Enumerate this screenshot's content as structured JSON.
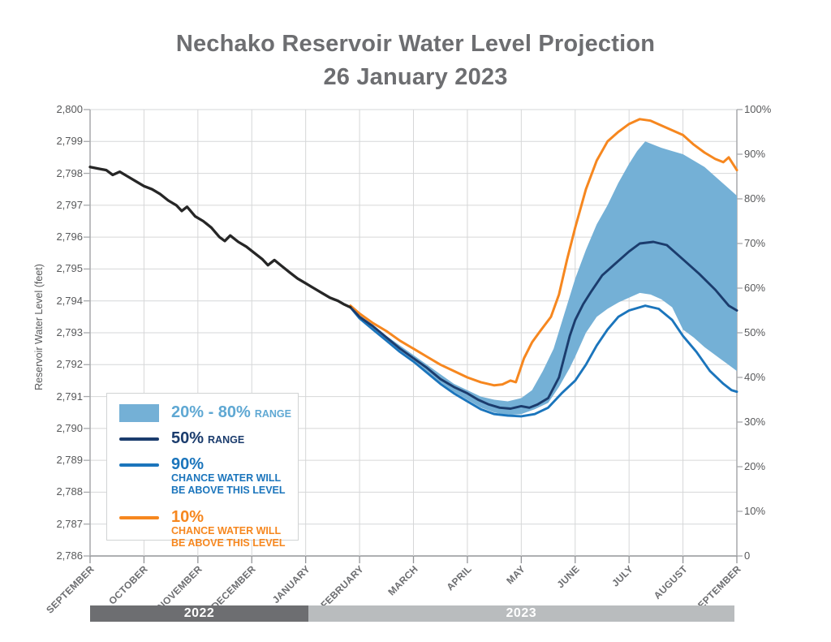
{
  "title": {
    "line1": "Nechako Reservoir Water Level Projection",
    "line2": "26 January 2023"
  },
  "colors": {
    "historical": "#262626",
    "median": "#1b3c6d",
    "p90": "#1b75bc",
    "p10": "#f6871f",
    "band": "#74b0d6",
    "band_text": "#5fa8d3",
    "grid": "#d6d7d8",
    "axis": "#a7a9ac",
    "axis_dark": "#939598",
    "bar_2022": "#6d6e71",
    "bar_2023": "#b9bcbe",
    "title_gray": "#6d6e71",
    "tick_gray": "#58595b"
  },
  "y_axis": {
    "title": "Reservoir Water Level (feet)",
    "min": 2786,
    "max": 2800,
    "step": 1,
    "labels": [
      "2,800",
      "2,799",
      "2,798",
      "2,797",
      "2,796",
      "2,795",
      "2,794",
      "2,793",
      "2,792",
      "2,791",
      "2,790",
      "2,789",
      "2,788",
      "2,787",
      "2,786"
    ]
  },
  "y2_axis": {
    "min": 0,
    "max": 100,
    "step": 10,
    "labels": [
      "100%",
      "90%",
      "80%",
      "70%",
      "60%",
      "50%",
      "40%",
      "30%",
      "20%",
      "10%",
      "0"
    ]
  },
  "x_axis": {
    "months": [
      "SEPTEMBER",
      "OCTOBER",
      "NOVEMBER",
      "DECEMBER",
      "JANUARY",
      "FEBRUARY",
      "MARCH",
      "APRIL",
      "MAY",
      "JUNE",
      "JULY",
      "AUGUST",
      "SEPTEMBER"
    ]
  },
  "year_bars": [
    {
      "label": "2022",
      "start_month": 0.0,
      "end_month": 4.05,
      "color_key": "bar_2022"
    },
    {
      "label": "2023",
      "start_month": 4.05,
      "end_month": 11.95,
      "color_key": "bar_2023"
    }
  ],
  "legend": {
    "items": [
      {
        "pct": "20% - 80%",
        "sub": "RANGE",
        "color_key": "band",
        "text_color_key": "band_text",
        "swatch": "rect"
      },
      {
        "pct": "50%",
        "sub": "RANGE",
        "color_key": "median",
        "text_color_key": "median",
        "swatch": "line"
      },
      {
        "pct": "90%",
        "caption_line1": "CHANCE WATER WILL",
        "caption_line2": "BE ABOVE THIS LEVEL",
        "color_key": "p90",
        "text_color_key": "p90",
        "swatch": "line"
      },
      {
        "pct": "10%",
        "caption_line1": "CHANCE WATER WILL",
        "caption_line2": "BE ABOVE THIS LEVEL",
        "color_key": "p10",
        "text_color_key": "p10",
        "swatch": "line"
      }
    ]
  },
  "chart_data": {
    "type": "line",
    "title": "Nechako Reservoir Water Level Projection — 26 January 2023",
    "xlabel_unit": "months, 0 = September 2022 through 12 = September 2023",
    "ylabel": "Reservoir Water Level (feet)",
    "ylim": [
      2786,
      2800
    ],
    "y2lim_percent": [
      0,
      100
    ],
    "grid": true,
    "legend_position": "lower-left",
    "series": [
      {
        "name": "Historical water level",
        "color_key": "historical",
        "width": 3.3,
        "points": [
          [
            0,
            2798.2
          ],
          [
            0.15,
            2798.15
          ],
          [
            0.3,
            2798.1
          ],
          [
            0.42,
            2797.95
          ],
          [
            0.55,
            2798.05
          ],
          [
            0.7,
            2797.9
          ],
          [
            0.85,
            2797.75
          ],
          [
            1,
            2797.6
          ],
          [
            1.15,
            2797.5
          ],
          [
            1.3,
            2797.35
          ],
          [
            1.45,
            2797.15
          ],
          [
            1.6,
            2797.0
          ],
          [
            1.7,
            2796.82
          ],
          [
            1.8,
            2796.95
          ],
          [
            1.95,
            2796.65
          ],
          [
            2.1,
            2796.5
          ],
          [
            2.25,
            2796.3
          ],
          [
            2.4,
            2796.0
          ],
          [
            2.5,
            2795.88
          ],
          [
            2.6,
            2796.05
          ],
          [
            2.75,
            2795.85
          ],
          [
            2.9,
            2795.7
          ],
          [
            3.05,
            2795.5
          ],
          [
            3.2,
            2795.3
          ],
          [
            3.3,
            2795.12
          ],
          [
            3.42,
            2795.28
          ],
          [
            3.55,
            2795.1
          ],
          [
            3.7,
            2794.9
          ],
          [
            3.85,
            2794.7
          ],
          [
            4,
            2794.55
          ],
          [
            4.15,
            2794.4
          ],
          [
            4.3,
            2794.25
          ],
          [
            4.45,
            2794.1
          ],
          [
            4.6,
            2794.0
          ],
          [
            4.7,
            2793.9
          ],
          [
            4.83,
            2793.8
          ]
        ]
      },
      {
        "name": "50% range (median projection)",
        "color_key": "median",
        "width": 2.9,
        "points": [
          [
            4.83,
            2793.8
          ],
          [
            5,
            2793.5
          ],
          [
            5.25,
            2793.2
          ],
          [
            5.5,
            2792.85
          ],
          [
            5.75,
            2792.5
          ],
          [
            6,
            2792.2
          ],
          [
            6.25,
            2791.9
          ],
          [
            6.5,
            2791.55
          ],
          [
            6.75,
            2791.3
          ],
          [
            7,
            2791.1
          ],
          [
            7.2,
            2790.9
          ],
          [
            7.4,
            2790.75
          ],
          [
            7.6,
            2790.65
          ],
          [
            7.8,
            2790.62
          ],
          [
            8,
            2790.7
          ],
          [
            8.15,
            2790.65
          ],
          [
            8.3,
            2790.75
          ],
          [
            8.5,
            2790.95
          ],
          [
            8.7,
            2791.6
          ],
          [
            8.9,
            2792.9
          ],
          [
            9,
            2793.4
          ],
          [
            9.15,
            2793.9
          ],
          [
            9.3,
            2794.3
          ],
          [
            9.5,
            2794.8
          ],
          [
            9.7,
            2795.1
          ],
          [
            10,
            2795.55
          ],
          [
            10.2,
            2795.8
          ],
          [
            10.45,
            2795.85
          ],
          [
            10.7,
            2795.75
          ],
          [
            11,
            2795.3
          ],
          [
            11.3,
            2794.85
          ],
          [
            11.6,
            2794.35
          ],
          [
            11.85,
            2793.85
          ],
          [
            12,
            2793.7
          ]
        ]
      },
      {
        "name": "90% chance water will be above this level",
        "color_key": "p90",
        "width": 2.9,
        "points": [
          [
            4.83,
            2793.8
          ],
          [
            5,
            2793.45
          ],
          [
            5.25,
            2793.1
          ],
          [
            5.5,
            2792.75
          ],
          [
            5.75,
            2792.4
          ],
          [
            6,
            2792.1
          ],
          [
            6.25,
            2791.75
          ],
          [
            6.5,
            2791.4
          ],
          [
            6.75,
            2791.1
          ],
          [
            7,
            2790.85
          ],
          [
            7.25,
            2790.6
          ],
          [
            7.5,
            2790.45
          ],
          [
            7.75,
            2790.4
          ],
          [
            8,
            2790.38
          ],
          [
            8.25,
            2790.45
          ],
          [
            8.5,
            2790.65
          ],
          [
            8.75,
            2791.1
          ],
          [
            9,
            2791.5
          ],
          [
            9.2,
            2792.0
          ],
          [
            9.4,
            2792.6
          ],
          [
            9.6,
            2793.1
          ],
          [
            9.8,
            2793.5
          ],
          [
            10,
            2793.7
          ],
          [
            10.3,
            2793.85
          ],
          [
            10.55,
            2793.75
          ],
          [
            10.8,
            2793.4
          ],
          [
            11,
            2792.9
          ],
          [
            11.25,
            2792.4
          ],
          [
            11.5,
            2791.8
          ],
          [
            11.75,
            2791.4
          ],
          [
            11.9,
            2791.2
          ],
          [
            12,
            2791.15
          ]
        ]
      },
      {
        "name": "10% chance water will be above this level",
        "color_key": "p10",
        "width": 3.0,
        "points": [
          [
            4.83,
            2793.85
          ],
          [
            5,
            2793.6
          ],
          [
            5.25,
            2793.3
          ],
          [
            5.5,
            2793.05
          ],
          [
            5.75,
            2792.75
          ],
          [
            6,
            2792.5
          ],
          [
            6.25,
            2792.25
          ],
          [
            6.5,
            2792.0
          ],
          [
            6.75,
            2791.8
          ],
          [
            7,
            2791.6
          ],
          [
            7.25,
            2791.45
          ],
          [
            7.5,
            2791.35
          ],
          [
            7.65,
            2791.38
          ],
          [
            7.8,
            2791.5
          ],
          [
            7.9,
            2791.45
          ],
          [
            8.05,
            2792.2
          ],
          [
            8.2,
            2792.7
          ],
          [
            8.35,
            2793.05
          ],
          [
            8.55,
            2793.5
          ],
          [
            8.7,
            2794.2
          ],
          [
            8.85,
            2795.3
          ],
          [
            9,
            2796.3
          ],
          [
            9.2,
            2797.5
          ],
          [
            9.4,
            2798.4
          ],
          [
            9.6,
            2799.0
          ],
          [
            9.8,
            2799.3
          ],
          [
            10,
            2799.55
          ],
          [
            10.2,
            2799.7
          ],
          [
            10.4,
            2799.65
          ],
          [
            10.6,
            2799.5
          ],
          [
            10.8,
            2799.35
          ],
          [
            11,
            2799.2
          ],
          [
            11.2,
            2798.9
          ],
          [
            11.4,
            2798.65
          ],
          [
            11.6,
            2798.45
          ],
          [
            11.75,
            2798.35
          ],
          [
            11.85,
            2798.5
          ],
          [
            12,
            2798.1
          ]
        ]
      }
    ],
    "band": {
      "name": "20% - 80% range",
      "color_key": "band",
      "top": [
        [
          4.9,
          2793.7
        ],
        [
          5,
          2793.55
        ],
        [
          5.25,
          2793.25
        ],
        [
          5.5,
          2792.9
        ],
        [
          5.75,
          2792.6
        ],
        [
          6,
          2792.3
        ],
        [
          6.25,
          2792.0
        ],
        [
          6.5,
          2791.7
        ],
        [
          6.75,
          2791.4
        ],
        [
          7,
          2791.2
        ],
        [
          7.25,
          2791.0
        ],
        [
          7.5,
          2790.9
        ],
        [
          7.75,
          2790.85
        ],
        [
          8,
          2790.95
        ],
        [
          8.2,
          2791.2
        ],
        [
          8.4,
          2791.8
        ],
        [
          8.6,
          2792.5
        ],
        [
          8.8,
          2793.6
        ],
        [
          9,
          2794.7
        ],
        [
          9.2,
          2795.6
        ],
        [
          9.4,
          2796.4
        ],
        [
          9.6,
          2797.0
        ],
        [
          9.8,
          2797.7
        ],
        [
          10,
          2798.3
        ],
        [
          10.15,
          2798.7
        ],
        [
          10.3,
          2799.0
        ],
        [
          10.45,
          2798.9
        ],
        [
          10.6,
          2798.8
        ],
        [
          10.8,
          2798.7
        ],
        [
          11,
          2798.6
        ],
        [
          11.2,
          2798.4
        ],
        [
          11.4,
          2798.2
        ],
        [
          11.6,
          2797.9
        ],
        [
          11.8,
          2797.6
        ],
        [
          12,
          2797.3
        ]
      ],
      "bottom": [
        [
          4.9,
          2793.65
        ],
        [
          5,
          2793.5
        ],
        [
          5.25,
          2793.15
        ],
        [
          5.5,
          2792.8
        ],
        [
          5.75,
          2792.45
        ],
        [
          6,
          2792.15
        ],
        [
          6.25,
          2791.8
        ],
        [
          6.5,
          2791.45
        ],
        [
          6.75,
          2791.15
        ],
        [
          7,
          2790.9
        ],
        [
          7.25,
          2790.65
        ],
        [
          7.5,
          2790.5
        ],
        [
          7.75,
          2790.42
        ],
        [
          8,
          2790.45
        ],
        [
          8.25,
          2790.6
        ],
        [
          8.5,
          2790.8
        ],
        [
          8.7,
          2791.3
        ],
        [
          8.9,
          2791.9
        ],
        [
          9,
          2792.25
        ],
        [
          9.2,
          2793.0
        ],
        [
          9.4,
          2793.5
        ],
        [
          9.6,
          2793.75
        ],
        [
          9.8,
          2793.95
        ],
        [
          10,
          2794.1
        ],
        [
          10.2,
          2794.25
        ],
        [
          10.4,
          2794.2
        ],
        [
          10.6,
          2794.05
        ],
        [
          10.8,
          2793.8
        ],
        [
          11,
          2793.1
        ],
        [
          11.2,
          2792.85
        ],
        [
          11.4,
          2792.55
        ],
        [
          11.6,
          2792.3
        ],
        [
          11.8,
          2792.05
        ],
        [
          12,
          2791.8
        ]
      ]
    }
  }
}
